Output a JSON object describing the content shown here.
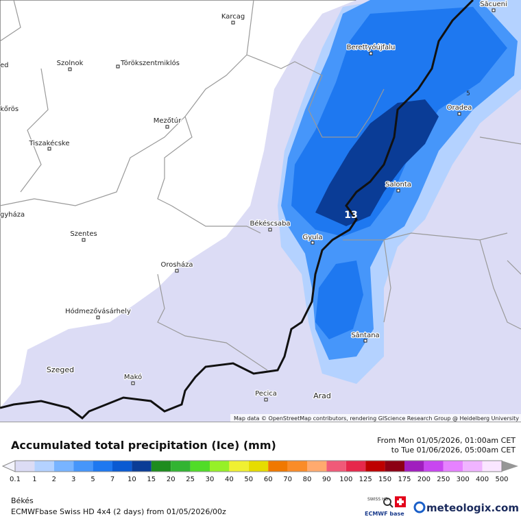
{
  "map": {
    "places": [
      "Karcag",
      "Szolnok",
      "Törökszentmiklós",
      "Berettyóújfalu",
      "Săcueni",
      "Oradea",
      "ed",
      "kőrös",
      "Mezőtúr",
      "Tiszakécske",
      "Salonta",
      "Békéscsaba",
      "Gyula",
      "gyháza",
      "Szentes",
      "Orosháza",
      "Hódmezővásárhely",
      "Sântana",
      "Szeged",
      "Makó",
      "Pecica",
      "Arad",
      "13",
      "5"
    ],
    "attribution": "Map data © OpenStreetMap contributors, rendering GIScience Research Group @ Heidelberg University"
  },
  "legend": {
    "title": "Accumulated total precipitation (Ice) (mm)",
    "from": "From Mon 01/05/2026, 01:00am CET",
    "to": "to Tue 01/06/2026, 05:00am CET",
    "labels": [
      "0.1",
      "1",
      "2",
      "3",
      "5",
      "7",
      "10",
      "15",
      "20",
      "25",
      "30",
      "40",
      "50",
      "60",
      "70",
      "80",
      "90",
      "100",
      "125",
      "150",
      "175",
      "200",
      "250",
      "300",
      "400",
      "500"
    ],
    "colors": [
      "#dcdcf5",
      "#b4d2ff",
      "#78b4ff",
      "#4696fa",
      "#1e78f0",
      "#0a5ad2",
      "#0a3c96",
      "#1e8c1e",
      "#32b432",
      "#50dc28",
      "#96f028",
      "#f0f032",
      "#e6dc00",
      "#f07800",
      "#fa8c28",
      "#ffaa6e",
      "#f05a78",
      "#e6284b",
      "#be0000",
      "#8c0014",
      "#a01ebe",
      "#c846f0",
      "#e682ff",
      "#f0b4ff",
      "#fae6ff"
    ]
  },
  "footer": {
    "region": "Békés",
    "model": "ECMWFbase Swiss HD 4x4 (2 days) from  01/05/2026/00z",
    "brand": "meteologix.com",
    "badge_top": "SWISS HD",
    "badge_bottom": "ECMWF base"
  }
}
